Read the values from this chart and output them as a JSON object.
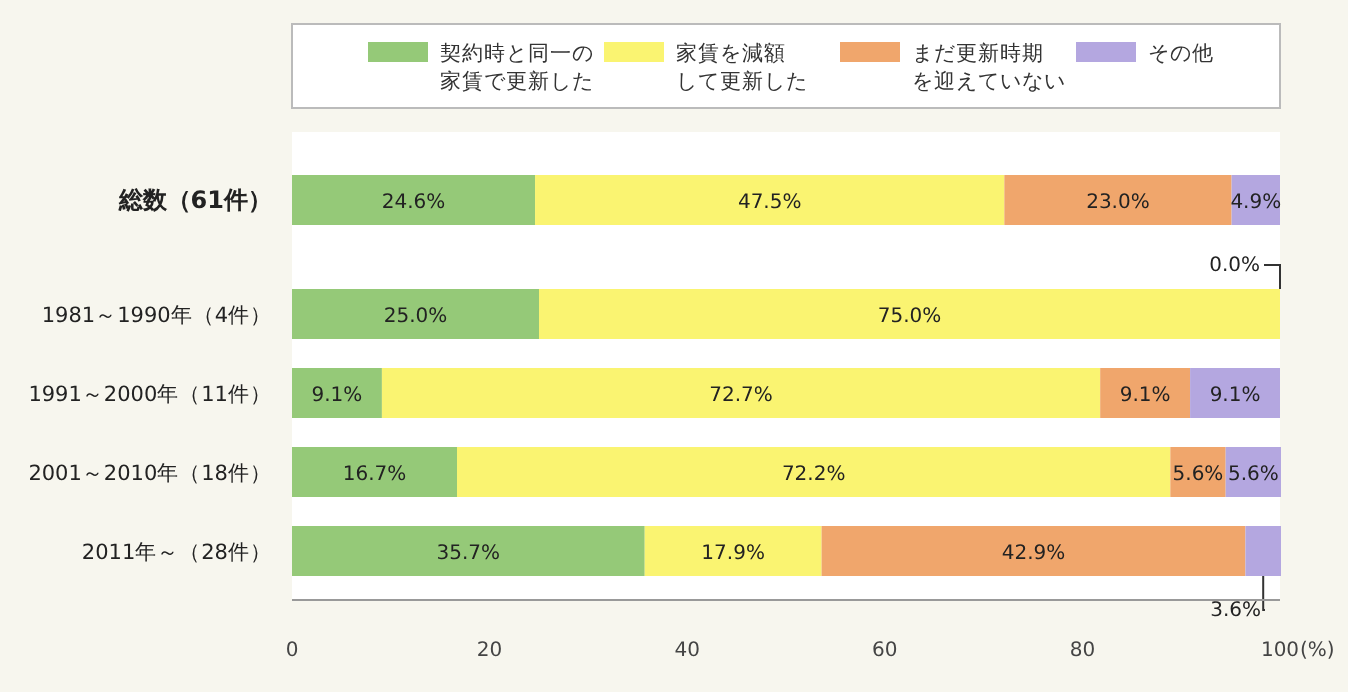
{
  "chart_data": {
    "type": "bar",
    "orientation": "horizontal",
    "stacked": true,
    "legend": "top",
    "xlabel": "(%)",
    "categories": [
      "総数（61件）",
      "1981～1990年（4件）",
      "1991～2000年（11件）",
      "2001～2010年（18件）",
      "2011年～（28件）"
    ],
    "xlim": [
      0,
      100
    ],
    "xticks": [
      0,
      20,
      40,
      60,
      80,
      100
    ],
    "series": [
      {
        "name": "契約時と同一の家賃で更新した",
        "color": "#95c978",
        "values": [
          24.6,
          25.0,
          9.1,
          16.7,
          35.7
        ],
        "value_labels": [
          "24.6%",
          "25.0%",
          "9.1%",
          "16.7%",
          "35.7%"
        ]
      },
      {
        "name": "家賃を減額して更新した",
        "color": "#faf471",
        "values": [
          47.5,
          75.0,
          72.7,
          72.2,
          17.9
        ],
        "value_labels": [
          "47.5%",
          "75.0%",
          "72.7%",
          "72.2%",
          "17.9%"
        ]
      },
      {
        "name": "まだ更新時期を迎えていない",
        "color": "#f0a66c",
        "values": [
          23.0,
          0.0,
          9.1,
          5.6,
          42.9
        ],
        "value_labels": [
          "23.0%",
          null,
          "9.1%",
          "5.6%",
          "42.9%"
        ]
      },
      {
        "name": "その他",
        "color": "#b4a7e0",
        "values": [
          4.9,
          0.0,
          9.1,
          5.6,
          3.6
        ],
        "value_labels": [
          "4.9%",
          null,
          "9.1%",
          "5.6%",
          "3.6%"
        ]
      }
    ],
    "annotations": [
      {
        "text": "0.0%",
        "x": 100,
        "y": "1981～1990年（4件）"
      }
    ]
  }
}
